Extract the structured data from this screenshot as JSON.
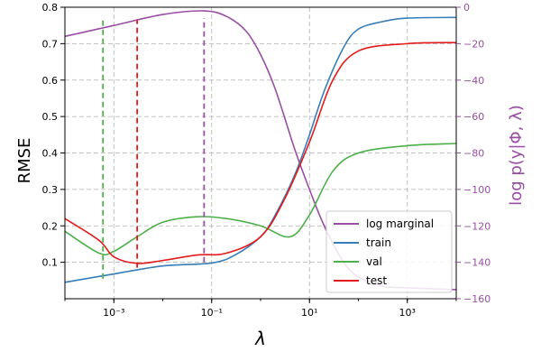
{
  "chart_data": {
    "type": "line",
    "xlabel": "λ",
    "ylabel": "RMSE",
    "y2label": "log p(y|Φ, λ)",
    "xscale": "log",
    "xlim": [
      0.0001,
      10000
    ],
    "ylim": [
      0.0,
      0.8
    ],
    "y2lim": [
      -160,
      0
    ],
    "grid": true,
    "legend_position": "lower-right",
    "xticks": [
      {
        "label": "10⁻³",
        "value": 0.001
      },
      {
        "label": "10⁻¹",
        "value": 0.1
      },
      {
        "label": "10¹",
        "value": 10
      },
      {
        "label": "10³",
        "value": 1000
      }
    ],
    "yticks": [
      "0.1",
      "0.2",
      "0.3",
      "0.4",
      "0.5",
      "0.6",
      "0.7",
      "0.8"
    ],
    "y2ticks": [
      "0",
      "−20",
      "−40",
      "−60",
      "−80",
      "−100",
      "−120",
      "−140",
      "−160"
    ],
    "series": [
      {
        "name": "log marginal",
        "axis": "right",
        "color": "#984ea3",
        "x": [
          0.0001,
          0.001,
          0.01,
          0.07,
          0.2,
          0.5,
          1,
          2,
          5,
          10,
          20,
          50,
          100,
          300,
          1000,
          10000
        ],
        "values": [
          -16,
          -10,
          -4,
          -2,
          -5,
          -13,
          -26,
          -45,
          -78,
          -100,
          -120,
          -140,
          -148,
          -153,
          -154,
          -155
        ]
      },
      {
        "name": "train",
        "axis": "left",
        "color": "#377eb8",
        "x": [
          0.0001,
          0.001,
          0.01,
          0.1,
          0.3,
          1,
          2,
          5,
          10,
          20,
          50,
          100,
          300,
          1000,
          10000
        ],
        "values": [
          0.045,
          0.068,
          0.09,
          0.098,
          0.12,
          0.17,
          0.23,
          0.34,
          0.45,
          0.57,
          0.69,
          0.74,
          0.76,
          0.77,
          0.772
        ]
      },
      {
        "name": "val",
        "axis": "left",
        "color": "#4daf4a",
        "x": [
          0.0001,
          0.0005,
          0.001,
          0.003,
          0.01,
          0.05,
          0.2,
          1,
          4,
          10,
          30,
          100,
          1000,
          10000
        ],
        "values": [
          0.185,
          0.125,
          0.13,
          0.17,
          0.21,
          0.225,
          0.22,
          0.2,
          0.17,
          0.23,
          0.35,
          0.4,
          0.42,
          0.426
        ]
      },
      {
        "name": "test",
        "axis": "left",
        "color": "#e41a1c",
        "x": [
          0.0001,
          0.0005,
          0.001,
          0.003,
          0.01,
          0.05,
          0.2,
          1,
          3,
          10,
          30,
          100,
          1000,
          10000
        ],
        "values": [
          0.22,
          0.16,
          0.115,
          0.097,
          0.105,
          0.12,
          0.125,
          0.17,
          0.27,
          0.43,
          0.6,
          0.68,
          0.7,
          0.703
        ]
      }
    ],
    "vlines": [
      {
        "series": "val",
        "x": 0.0006,
        "color": "#4daf4a",
        "ymin": 0.055,
        "ymax": 0.765
      },
      {
        "series": "test",
        "x": 0.003,
        "color": "#e41a1c",
        "ymin": 0.085,
        "ymax": 0.765
      },
      {
        "series": "log marginal",
        "x": 0.07,
        "color": "#984ea3",
        "ymin": 0.1,
        "ymax": 0.77
      }
    ]
  }
}
